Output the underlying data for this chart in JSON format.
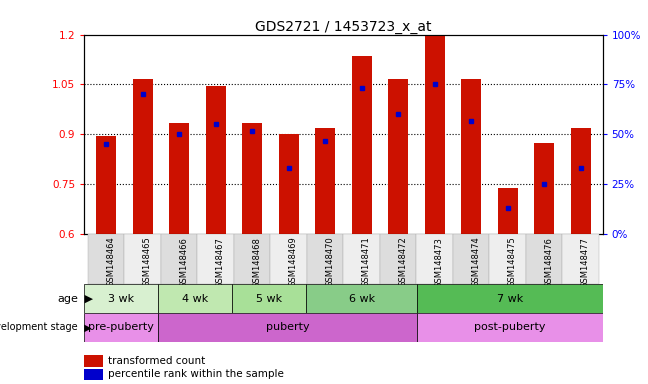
{
  "title": "GDS2721 / 1453723_x_at",
  "samples": [
    "GSM148464",
    "GSM148465",
    "GSM148466",
    "GSM148467",
    "GSM148468",
    "GSM148469",
    "GSM148470",
    "GSM148471",
    "GSM148472",
    "GSM148473",
    "GSM148474",
    "GSM148475",
    "GSM148476",
    "GSM148477"
  ],
  "bar_tops": [
    0.895,
    1.065,
    0.935,
    1.045,
    0.935,
    0.9,
    0.92,
    1.135,
    1.065,
    1.195,
    1.065,
    0.74,
    0.875,
    0.92
  ],
  "bar_bottom": 0.6,
  "blue_dots": [
    0.87,
    1.02,
    0.9,
    0.93,
    0.91,
    0.8,
    0.88,
    1.04,
    0.96,
    1.05,
    0.94,
    0.68,
    0.75,
    0.8
  ],
  "ylim": [
    0.6,
    1.2
  ],
  "y_ticks_left": [
    0.6,
    0.75,
    0.9,
    1.05,
    1.2
  ],
  "y_ticks_right": [
    0,
    25,
    50,
    75,
    100
  ],
  "ytick_labels_left": [
    "0.6",
    "0.75",
    "0.9",
    "1.05",
    "1.2"
  ],
  "ytick_labels_right": [
    "0%",
    "25%",
    "50%",
    "75%",
    "100%"
  ],
  "hlines": [
    0.75,
    0.9,
    1.05
  ],
  "bar_color": "#cc1100",
  "dot_color": "#0000cc",
  "age_groups": [
    {
      "label": "3 wk",
      "start": 0,
      "end": 2
    },
    {
      "label": "4 wk",
      "start": 2,
      "end": 4
    },
    {
      "label": "5 wk",
      "start": 4,
      "end": 6
    },
    {
      "label": "6 wk",
      "start": 6,
      "end": 9
    },
    {
      "label": "7 wk",
      "start": 9,
      "end": 14
    }
  ],
  "age_colors": [
    "#d8f0d0",
    "#c0e8b0",
    "#a8e098",
    "#88cc88",
    "#55bb55"
  ],
  "dev_groups": [
    {
      "label": "pre-puberty",
      "start": 0,
      "end": 2
    },
    {
      "label": "puberty",
      "start": 2,
      "end": 9
    },
    {
      "label": "post-puberty",
      "start": 9,
      "end": 14
    }
  ],
  "dev_colors": [
    "#e890e8",
    "#cc66cc",
    "#e890e8"
  ],
  "legend_items": [
    {
      "label": "transformed count",
      "color": "#cc1100"
    },
    {
      "label": "percentile rank within the sample",
      "color": "#0000cc"
    }
  ]
}
